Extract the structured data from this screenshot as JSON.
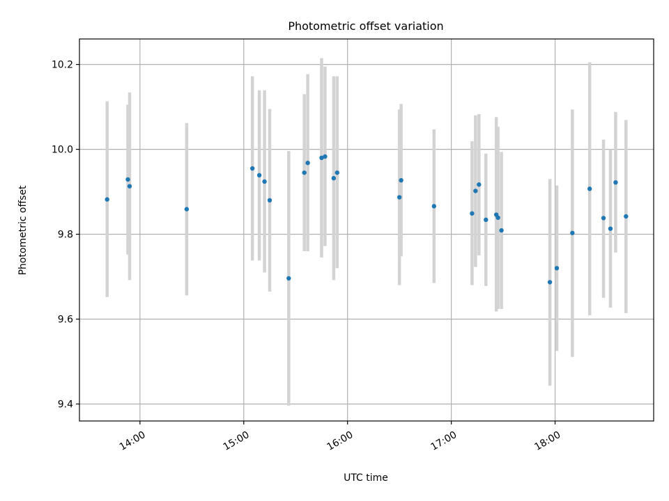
{
  "chart_data": {
    "type": "scatter",
    "title": "Photometric offset variation",
    "xlabel": "UTC time",
    "ylabel": "Photometric offset",
    "x_unit": "UTC hours",
    "xlim": [
      "13:25",
      "18:57"
    ],
    "ylim": [
      9.36,
      10.26
    ],
    "x_ticks": [
      {
        "t": "14:00",
        "label": "14:00"
      },
      {
        "t": "15:00",
        "label": "15:00"
      },
      {
        "t": "16:00",
        "label": "16:00"
      },
      {
        "t": "17:00",
        "label": "17:00"
      },
      {
        "t": "18:00",
        "label": "18:00"
      }
    ],
    "y_ticks": [
      {
        "v": 9.4,
        "label": "9.4"
      },
      {
        "v": 9.6,
        "label": "9.6"
      },
      {
        "v": 9.8,
        "label": "9.8"
      },
      {
        "v": 10.0,
        "label": "10.0"
      },
      {
        "v": 10.2,
        "label": "10.2"
      }
    ],
    "grid": true,
    "colors": {
      "point": "#1f77b4",
      "errorbar": "#d3d3d3",
      "grid": "#b0b0b0"
    },
    "points": [
      {
        "t": "13:41",
        "y": 9.882,
        "lo": 9.652,
        "hi": 10.113
      },
      {
        "t": "13:53",
        "y": 9.929,
        "lo": 9.752,
        "hi": 10.105
      },
      {
        "t": "13:54",
        "y": 9.913,
        "lo": 9.692,
        "hi": 10.134
      },
      {
        "t": "14:27",
        "y": 9.859,
        "lo": 9.656,
        "hi": 10.062
      },
      {
        "t": "15:05",
        "y": 9.955,
        "lo": 9.738,
        "hi": 10.172
      },
      {
        "t": "15:09",
        "y": 9.939,
        "lo": 9.738,
        "hi": 10.139
      },
      {
        "t": "15:12",
        "y": 9.924,
        "lo": 9.71,
        "hi": 10.139
      },
      {
        "t": "15:15",
        "y": 9.88,
        "lo": 9.665,
        "hi": 10.095
      },
      {
        "t": "15:26",
        "y": 9.696,
        "lo": 9.396,
        "hi": 9.996
      },
      {
        "t": "15:35",
        "y": 9.945,
        "lo": 9.76,
        "hi": 10.13
      },
      {
        "t": "15:37",
        "y": 9.968,
        "lo": 9.76,
        "hi": 10.177
      },
      {
        "t": "15:45",
        "y": 9.98,
        "lo": 9.745,
        "hi": 10.215
      },
      {
        "t": "15:47",
        "y": 9.983,
        "lo": 9.772,
        "hi": 10.195
      },
      {
        "t": "15:52",
        "y": 9.932,
        "lo": 9.692,
        "hi": 10.172
      },
      {
        "t": "15:54",
        "y": 9.945,
        "lo": 9.72,
        "hi": 10.172
      },
      {
        "t": "16:30",
        "y": 9.887,
        "lo": 9.68,
        "hi": 10.094
      },
      {
        "t": "16:31",
        "y": 9.927,
        "lo": 9.748,
        "hi": 10.107
      },
      {
        "t": "16:50",
        "y": 9.866,
        "lo": 9.685,
        "hi": 10.047
      },
      {
        "t": "17:12",
        "y": 9.849,
        "lo": 9.68,
        "hi": 10.019
      },
      {
        "t": "17:14",
        "y": 9.902,
        "lo": 9.723,
        "hi": 10.08
      },
      {
        "t": "17:16",
        "y": 9.917,
        "lo": 9.75,
        "hi": 10.083
      },
      {
        "t": "17:20",
        "y": 9.834,
        "lo": 9.678,
        "hi": 9.99
      },
      {
        "t": "17:26",
        "y": 9.846,
        "lo": 9.618,
        "hi": 10.076
      },
      {
        "t": "17:27",
        "y": 9.839,
        "lo": 9.624,
        "hi": 10.053
      },
      {
        "t": "17:29",
        "y": 9.809,
        "lo": 9.624,
        "hi": 9.994
      },
      {
        "t": "17:57",
        "y": 9.687,
        "lo": 9.443,
        "hi": 9.93
      },
      {
        "t": "18:01",
        "y": 9.72,
        "lo": 9.525,
        "hi": 9.915
      },
      {
        "t": "18:10",
        "y": 9.803,
        "lo": 9.511,
        "hi": 10.094
      },
      {
        "t": "18:20",
        "y": 9.907,
        "lo": 9.609,
        "hi": 10.205
      },
      {
        "t": "18:28",
        "y": 9.838,
        "lo": 9.65,
        "hi": 10.023
      },
      {
        "t": "18:32",
        "y": 9.813,
        "lo": 9.627,
        "hi": 10.0
      },
      {
        "t": "18:35",
        "y": 9.922,
        "lo": 9.757,
        "hi": 10.088
      },
      {
        "t": "18:41",
        "y": 9.842,
        "lo": 9.614,
        "hi": 10.069
      }
    ]
  }
}
